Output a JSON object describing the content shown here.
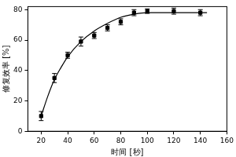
{
  "chart_data": {
    "type": "scatter",
    "x_label": "时间 [秒]",
    "y_label": "修复效率 [%]",
    "xlim": [
      10,
      160
    ],
    "xticks": [
      20,
      40,
      60,
      80,
      100,
      120,
      140,
      160
    ],
    "ylim": [
      0,
      82
    ],
    "yticks": [
      0,
      20,
      40,
      60,
      80
    ],
    "grid": false,
    "series": [
      {
        "type": "scatter",
        "marker": "square",
        "color": "#000000",
        "x": [
          20,
          30,
          40,
          50,
          60,
          70,
          80,
          90,
          100,
          120,
          140
        ],
        "values": [
          10,
          35,
          50,
          59,
          63,
          68,
          72,
          78,
          79,
          79,
          78
        ],
        "errors": [
          3,
          3,
          2,
          3,
          2,
          2,
          2,
          2,
          1.5,
          2,
          2
        ]
      },
      {
        "type": "line",
        "line_style": "solid",
        "color": "#000000",
        "x": [
          20,
          25,
          30,
          35,
          40,
          50,
          60,
          70,
          80,
          90,
          100,
          110,
          120,
          130,
          145
        ],
        "values": [
          10,
          23,
          34,
          42,
          49,
          59,
          66,
          71,
          75,
          77,
          78,
          78,
          78,
          78,
          78
        ]
      }
    ]
  }
}
